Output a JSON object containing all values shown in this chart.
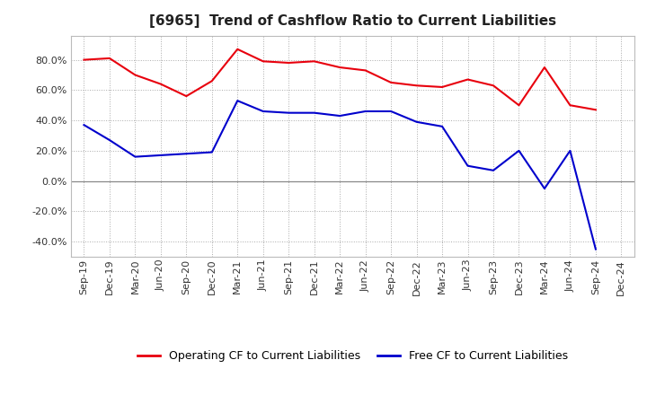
{
  "title": "[6965]  Trend of Cashflow Ratio to Current Liabilities",
  "x_labels": [
    "Sep-19",
    "Dec-19",
    "Mar-20",
    "Jun-20",
    "Sep-20",
    "Dec-20",
    "Mar-21",
    "Jun-21",
    "Sep-21",
    "Dec-21",
    "Mar-22",
    "Jun-22",
    "Sep-22",
    "Dec-22",
    "Mar-23",
    "Jun-23",
    "Sep-23",
    "Dec-23",
    "Mar-24",
    "Jun-24",
    "Sep-24",
    "Dec-24"
  ],
  "operating_cf": [
    0.8,
    0.81,
    0.7,
    0.64,
    0.56,
    0.66,
    0.87,
    0.79,
    0.78,
    0.79,
    0.75,
    0.73,
    0.65,
    0.63,
    0.62,
    0.67,
    0.63,
    0.5,
    0.75,
    0.5,
    0.47,
    null
  ],
  "free_cf": [
    0.37,
    0.27,
    0.16,
    0.17,
    0.18,
    0.19,
    0.53,
    0.46,
    0.45,
    0.45,
    0.43,
    0.46,
    0.46,
    0.39,
    0.36,
    0.1,
    0.07,
    0.2,
    -0.05,
    0.2,
    -0.45,
    null
  ],
  "operating_color": "#e8000d",
  "free_color": "#0000cc",
  "background_color": "#ffffff",
  "plot_bg_color": "#ffffff",
  "grid_color": "#aaaaaa",
  "ylim": [
    -0.5,
    0.96
  ],
  "yticks": [
    -0.4,
    -0.2,
    0.0,
    0.2,
    0.4,
    0.6,
    0.8
  ],
  "legend_labels": [
    "Operating CF to Current Liabilities",
    "Free CF to Current Liabilities"
  ],
  "zero_line_color": "#888888",
  "title_fontsize": 11,
  "axis_fontsize": 8,
  "legend_fontsize": 9
}
